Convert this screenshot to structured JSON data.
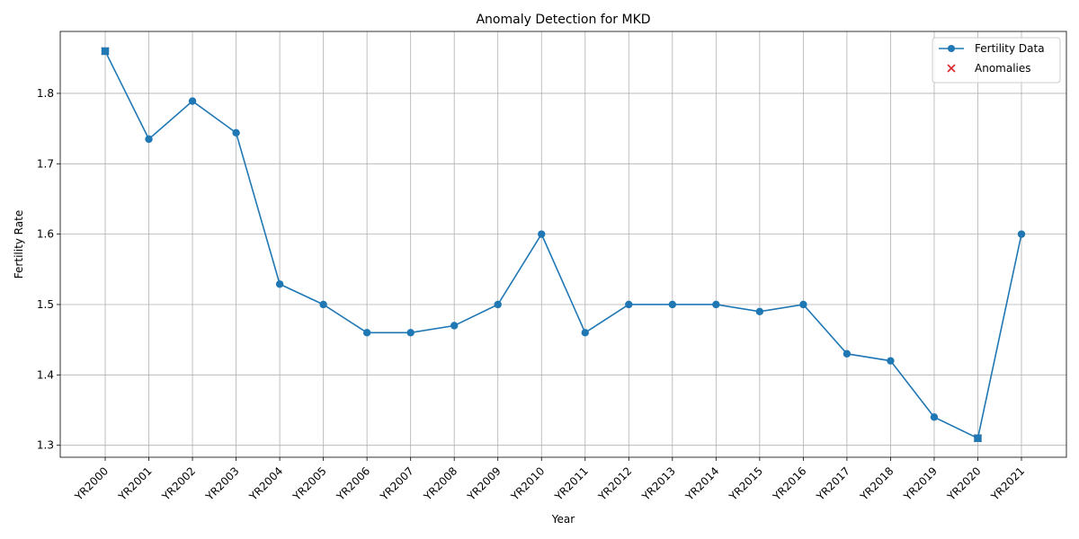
{
  "chart_data": {
    "type": "line",
    "title": "Anomaly Detection for MKD",
    "xlabel": "Year",
    "ylabel": "Fertility Rate",
    "categories": [
      "YR2000",
      "YR2001",
      "YR2002",
      "YR2003",
      "YR2004",
      "YR2005",
      "YR2006",
      "YR2007",
      "YR2008",
      "YR2009",
      "YR2010",
      "YR2011",
      "YR2012",
      "YR2013",
      "YR2014",
      "YR2015",
      "YR2016",
      "YR2017",
      "YR2018",
      "YR2019",
      "YR2020",
      "YR2021"
    ],
    "series": [
      {
        "name": "Fertility Data",
        "values": [
          1.86,
          1.735,
          1.789,
          1.744,
          1.529,
          1.5,
          1.46,
          1.46,
          1.47,
          1.5,
          1.6,
          1.46,
          1.5,
          1.5,
          1.5,
          1.49,
          1.5,
          1.43,
          1.42,
          1.34,
          1.31,
          1.6
        ],
        "color": "#1f77b4",
        "marker": "circle"
      }
    ],
    "anomalies": {
      "name": "Anomalies",
      "indices": [
        0,
        20
      ],
      "color": "#d62728",
      "marker": "x"
    },
    "ylim": [
      1.283,
      1.888
    ],
    "yticks": [
      1.3,
      1.4,
      1.5,
      1.6,
      1.7,
      1.8
    ],
    "ytick_labels": [
      "1.3",
      "1.4",
      "1.5",
      "1.6",
      "1.7",
      "1.8"
    ],
    "grid": true,
    "legend_position": "top-right"
  }
}
